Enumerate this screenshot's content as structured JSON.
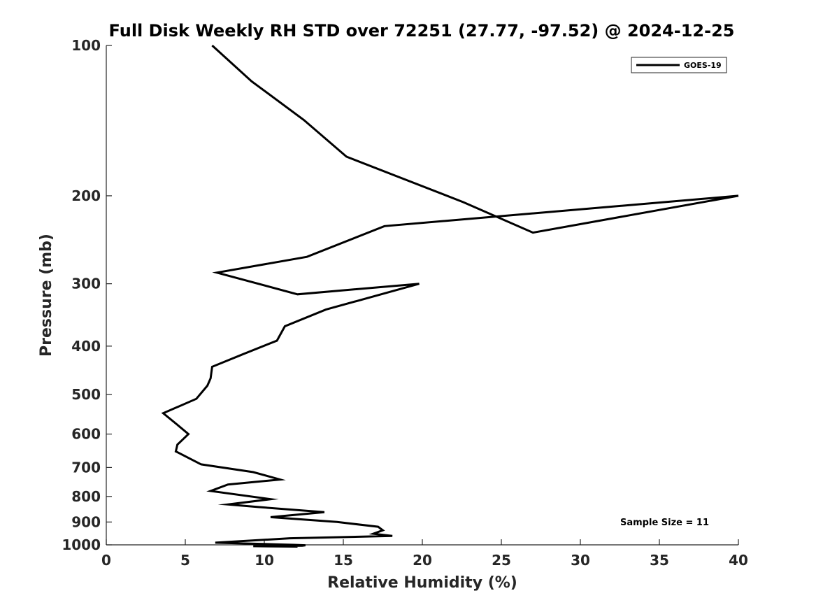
{
  "chart_data": {
    "type": "line",
    "title": "Full Disk Weekly RH STD over 72251 (27.77, -97.52) @ 2024-12-25",
    "xlabel": "Relative Humidity (%)",
    "ylabel": "Pressure (mb)",
    "xlim": [
      0,
      40
    ],
    "ylim": [
      100,
      1000
    ],
    "y_scale": "log",
    "y_reversed": true,
    "x_ticks": [
      0,
      5,
      10,
      15,
      20,
      25,
      30,
      35,
      40
    ],
    "y_ticks": [
      100,
      200,
      300,
      400,
      500,
      600,
      700,
      800,
      900,
      1000
    ],
    "grid": false,
    "legend_position": "top-right",
    "annotation": "Sample Size = 11",
    "series": [
      {
        "name": "GOES-19",
        "color": "#000000",
        "x": [
          6.7,
          9.2,
          12.5,
          15.2,
          22.6,
          27.0,
          40.0,
          17.6,
          12.7,
          7.0,
          12.1,
          19.8,
          13.9,
          11.3,
          10.8,
          8.5,
          6.7,
          6.6,
          6.4,
          5.7,
          3.6,
          4.5,
          5.2,
          4.5,
          4.4,
          6.0,
          9.3,
          11.0,
          7.7,
          6.6,
          10.4,
          7.7,
          9.6,
          13.8,
          10.4,
          14.6,
          17.2,
          17.5,
          16.9,
          18.1,
          11.6,
          6.9,
          11.9,
          12.6,
          12.4,
          9.3,
          12.1
        ],
        "y": [
          100,
          118,
          141,
          167,
          206,
          237,
          200,
          230,
          265,
          285,
          315,
          300,
          338,
          365,
          390,
          417,
          440,
          464,
          480,
          510,
          545,
          575,
          600,
          630,
          650,
          690,
          715,
          740,
          757,
          780,
          810,
          830,
          840,
          860,
          880,
          900,
          920,
          935,
          950,
          960,
          970,
          990,
          1000,
          1002,
          1004,
          1006,
          1008
        ]
      }
    ]
  }
}
